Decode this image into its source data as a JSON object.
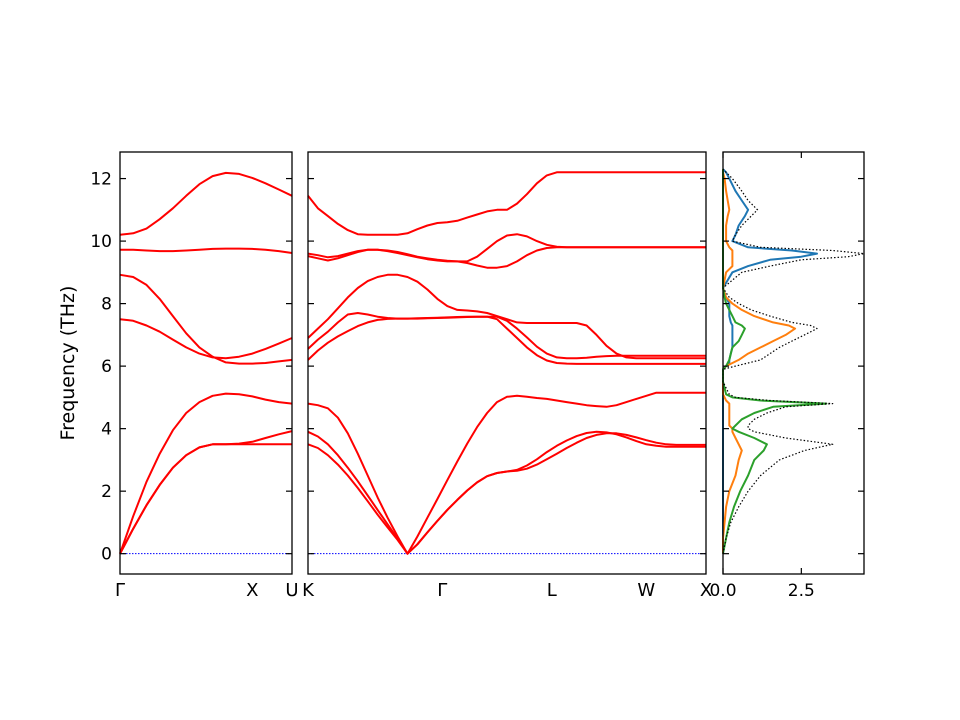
{
  "chart_data": {
    "type": "line",
    "ylabel": "Frequency (THz)",
    "ylim": [
      -0.65,
      12.85
    ],
    "yticks": [
      0,
      2,
      4,
      6,
      8,
      10,
      12
    ],
    "colors": {
      "bands": "#ff0000",
      "zero_line": "#0000ff",
      "dos_total": "#000000",
      "dos_1": "#1f77b4",
      "dos_2": "#ff7f0e",
      "dos_3": "#2ca02c"
    },
    "panels": [
      {
        "name": "band-segment-1",
        "path_labels": [
          "Γ",
          "X",
          "U"
        ],
        "x": [
          0,
          0.5,
          1,
          1.5,
          2,
          2.5,
          3,
          3.5,
          4,
          4.5,
          5,
          5.5,
          6,
          6.5
        ],
        "xlim": [
          0,
          6.5
        ],
        "label_positions": [
          0,
          5,
          6.5
        ],
        "series": [
          {
            "values": [
              0,
              0.8,
              1.55,
              2.2,
              2.75,
              3.15,
              3.4,
              3.5,
              3.5,
              3.5,
              3.5,
              3.5,
              3.5,
              3.5
            ]
          },
          {
            "values": [
              0,
              0.8,
              1.55,
              2.2,
              2.75,
              3.15,
              3.4,
              3.5,
              3.5,
              3.52,
              3.58,
              3.7,
              3.82,
              3.92
            ]
          },
          {
            "values": [
              0,
              1.2,
              2.3,
              3.2,
              3.95,
              4.5,
              4.85,
              5.05,
              5.12,
              5.1,
              5.03,
              4.93,
              4.85,
              4.8
            ]
          },
          {
            "values": [
              7.5,
              7.45,
              7.3,
              7.1,
              6.85,
              6.6,
              6.4,
              6.28,
              6.25,
              6.3,
              6.4,
              6.55,
              6.72,
              6.9
            ]
          },
          {
            "values": [
              8.92,
              8.85,
              8.6,
              8.15,
              7.6,
              7.05,
              6.6,
              6.3,
              6.12,
              6.08,
              6.08,
              6.1,
              6.15,
              6.2
            ]
          },
          {
            "values": [
              9.72,
              9.72,
              9.7,
              9.68,
              9.68,
              9.7,
              9.72,
              9.75,
              9.76,
              9.76,
              9.75,
              9.72,
              9.68,
              9.62
            ]
          },
          {
            "values": [
              10.2,
              10.25,
              10.4,
              10.7,
              11.05,
              11.45,
              11.82,
              12.08,
              12.18,
              12.15,
              12.02,
              11.85,
              11.65,
              11.45
            ]
          }
        ]
      },
      {
        "name": "band-segment-2",
        "path_labels": [
          "K",
          "Γ",
          "L",
          "W",
          "X"
        ],
        "x": [
          0,
          1,
          2,
          3,
          4,
          5,
          6,
          7,
          8,
          9,
          10,
          11,
          12,
          13,
          14,
          15,
          16,
          17,
          18,
          19,
          20,
          21,
          22,
          23,
          24,
          25,
          26,
          27,
          28,
          29,
          30,
          31,
          32,
          33,
          34,
          35,
          36,
          37,
          38,
          39,
          40
        ],
        "xlim": [
          0,
          40
        ],
        "label_positions": [
          0,
          13.5,
          24.5,
          34,
          40
        ],
        "series": [
          {
            "values": [
              3.5,
              3.38,
              3.15,
              2.85,
              2.5,
              2.1,
              1.68,
              1.25,
              0.84,
              0.44,
              0.0,
              0.3,
              0.68,
              1.05,
              1.4,
              1.72,
              2.02,
              2.28,
              2.48,
              2.58,
              2.63,
              2.65,
              2.72,
              2.85,
              3.02,
              3.2,
              3.38,
              3.55,
              3.7,
              3.8,
              3.85,
              3.85,
              3.8,
              3.72,
              3.63,
              3.55,
              3.5,
              3.48,
              3.48,
              3.48,
              3.48
            ]
          },
          {
            "values": [
              3.9,
              3.75,
              3.5,
              3.15,
              2.75,
              2.32,
              1.86,
              1.4,
              0.94,
              0.48,
              0.0,
              0.3,
              0.68,
              1.05,
              1.4,
              1.72,
              2.02,
              2.28,
              2.48,
              2.58,
              2.63,
              2.68,
              2.82,
              3.02,
              3.25,
              3.45,
              3.62,
              3.76,
              3.86,
              3.9,
              3.88,
              3.82,
              3.72,
              3.6,
              3.5,
              3.45,
              3.42,
              3.42,
              3.42,
              3.42,
              3.42
            ]
          },
          {
            "values": [
              4.8,
              4.75,
              4.65,
              4.35,
              3.85,
              3.2,
              2.5,
              1.8,
              1.15,
              0.55,
              0.0,
              0.55,
              1.15,
              1.75,
              2.35,
              2.95,
              3.52,
              4.05,
              4.5,
              4.85,
              5.02,
              5.05,
              5.02,
              4.98,
              4.95,
              4.9,
              4.85,
              4.8,
              4.75,
              4.72,
              4.7,
              4.75,
              4.85,
              4.95,
              5.05,
              5.15,
              5.15,
              5.15,
              5.15,
              5.15,
              5.15
            ]
          },
          {
            "values": [
              6.2,
              6.5,
              6.75,
              6.95,
              7.12,
              7.28,
              7.4,
              7.48,
              7.51,
              7.52,
              7.52,
              7.53,
              7.54,
              7.55,
              7.56,
              7.57,
              7.58,
              7.58,
              7.58,
              7.5,
              7.2,
              6.9,
              6.6,
              6.35,
              6.18,
              6.1,
              6.08,
              6.07,
              6.07,
              6.07,
              6.07,
              6.07,
              6.07,
              6.07,
              6.07,
              6.07,
              6.07,
              6.07,
              6.07,
              6.07,
              6.07
            ]
          },
          {
            "values": [
              6.55,
              6.85,
              7.1,
              7.4,
              7.65,
              7.7,
              7.65,
              7.58,
              7.54,
              7.52,
              7.52,
              7.52,
              7.53,
              7.54,
              7.55,
              7.56,
              7.57,
              7.58,
              7.58,
              7.58,
              7.45,
              7.2,
              6.92,
              6.62,
              6.4,
              6.28,
              6.25,
              6.25,
              6.27,
              6.3,
              6.32,
              6.33,
              6.33,
              6.33,
              6.33,
              6.33,
              6.33,
              6.33,
              6.33,
              6.33,
              6.33
            ]
          },
          {
            "values": [
              6.9,
              7.2,
              7.5,
              7.85,
              8.2,
              8.5,
              8.72,
              8.85,
              8.92,
              8.92,
              8.85,
              8.7,
              8.45,
              8.15,
              7.92,
              7.8,
              7.78,
              7.75,
              7.7,
              7.6,
              7.5,
              7.4,
              7.38,
              7.38,
              7.38,
              7.38,
              7.38,
              7.38,
              7.3,
              7.0,
              6.65,
              6.4,
              6.28,
              6.25,
              6.25,
              6.25,
              6.25,
              6.25,
              6.25,
              6.25,
              6.25
            ]
          },
          {
            "values": [
              9.52,
              9.45,
              9.38,
              9.45,
              9.55,
              9.65,
              9.72,
              9.72,
              9.68,
              9.62,
              9.55,
              9.48,
              9.42,
              9.38,
              9.35,
              9.35,
              9.35,
              9.5,
              9.75,
              10.0,
              10.18,
              10.22,
              10.15,
              10.0,
              9.88,
              9.82,
              9.8,
              9.8,
              9.8,
              9.8,
              9.8,
              9.8,
              9.8,
              9.8,
              9.8,
              9.8,
              9.8,
              9.8,
              9.8,
              9.8,
              9.8
            ]
          },
          {
            "values": [
              9.6,
              9.55,
              9.48,
              9.52,
              9.6,
              9.68,
              9.72,
              9.72,
              9.7,
              9.65,
              9.58,
              9.5,
              9.45,
              9.4,
              9.37,
              9.35,
              9.3,
              9.22,
              9.15,
              9.15,
              9.2,
              9.35,
              9.55,
              9.7,
              9.78,
              9.8,
              9.8,
              9.8,
              9.8,
              9.8,
              9.8,
              9.8,
              9.8,
              9.8,
              9.8,
              9.8,
              9.8,
              9.8,
              9.8,
              9.8,
              9.8
            ]
          },
          {
            "values": [
              11.45,
              11.05,
              10.8,
              10.55,
              10.35,
              10.22,
              10.2,
              10.2,
              10.2,
              10.2,
              10.25,
              10.38,
              10.5,
              10.58,
              10.6,
              10.65,
              10.75,
              10.85,
              10.95,
              11.0,
              11.0,
              11.2,
              11.5,
              11.85,
              12.1,
              12.2,
              12.2,
              12.2,
              12.2,
              12.2,
              12.2,
              12.2,
              12.2,
              12.2,
              12.2,
              12.2,
              12.2,
              12.2,
              12.2,
              12.2,
              12.2
            ]
          }
        ]
      }
    ],
    "dos": {
      "xlim": [
        0,
        4.5
      ],
      "xticks": [
        "0.0",
        "2.5"
      ],
      "xtick_values": [
        0.0,
        2.5
      ],
      "freq": [
        0.0,
        0.5,
        1.0,
        1.5,
        2.0,
        2.5,
        3.0,
        3.3,
        3.5,
        3.7,
        3.9,
        4.0,
        4.1,
        4.3,
        4.5,
        4.7,
        4.8,
        4.9,
        5.0,
        5.1,
        5.5,
        5.9,
        6.0,
        6.1,
        6.2,
        6.4,
        6.6,
        6.8,
        7.0,
        7.2,
        7.3,
        7.4,
        7.6,
        7.8,
        8.0,
        8.2,
        8.5,
        9.0,
        9.2,
        9.4,
        9.5,
        9.6,
        9.7,
        9.8,
        10.0,
        10.2,
        10.5,
        10.8,
        11.0,
        11.3,
        11.6,
        12.0,
        12.2,
        12.3
      ],
      "series": [
        {
          "values": [
            0.0,
            0.1,
            0.25,
            0.5,
            0.8,
            1.2,
            1.8,
            2.6,
            3.5,
            2.0,
            1.0,
            0.8,
            0.8,
            1.0,
            1.4,
            2.0,
            3.5,
            1.5,
            0.4,
            0.2,
            0.0,
            0.0,
            0.4,
            0.8,
            1.2,
            1.5,
            1.8,
            2.2,
            2.6,
            3.0,
            2.8,
            2.2,
            1.5,
            0.9,
            0.5,
            0.2,
            0.0,
            0.6,
            1.5,
            2.5,
            4.0,
            4.5,
            3.5,
            1.2,
            0.3,
            0.4,
            0.6,
            0.9,
            1.1,
            0.8,
            0.6,
            0.3,
            0.1,
            0.0
          ]
        },
        {
          "values": [
            0.0,
            0.0,
            0.0,
            0.0,
            0.0,
            0.0,
            0.0,
            0.0,
            0.0,
            0.0,
            0.0,
            0.0,
            0.0,
            0.0,
            0.0,
            0.0,
            0.0,
            0.0,
            0.0,
            0.0,
            0.0,
            0.0,
            0.1,
            0.2,
            0.2,
            0.25,
            0.3,
            0.3,
            0.3,
            0.3,
            0.3,
            0.25,
            0.2,
            0.2,
            0.2,
            0.1,
            0.0,
            0.3,
            0.8,
            1.5,
            2.5,
            3.0,
            2.2,
            0.8,
            0.3,
            0.4,
            0.5,
            0.7,
            0.8,
            0.6,
            0.4,
            0.2,
            0.1,
            0.0
          ]
        },
        {
          "values": [
            0.0,
            0.0,
            0.05,
            0.1,
            0.2,
            0.4,
            0.5,
            0.6,
            0.5,
            0.4,
            0.3,
            0.3,
            0.2,
            0.2,
            0.2,
            0.2,
            0.2,
            0.1,
            0.05,
            0.0,
            0.0,
            0.0,
            0.1,
            0.3,
            0.5,
            0.8,
            1.2,
            1.6,
            2.0,
            2.3,
            2.1,
            1.6,
            1.0,
            0.6,
            0.3,
            0.1,
            0.0,
            0.1,
            0.3,
            0.3,
            0.3,
            0.3,
            0.3,
            0.2,
            0.1,
            0.1,
            0.1,
            0.15,
            0.2,
            0.15,
            0.1,
            0.05,
            0.0,
            0.0
          ]
        },
        {
          "values": [
            0.0,
            0.1,
            0.2,
            0.35,
            0.55,
            0.8,
            1.0,
            1.3,
            1.4,
            1.0,
            0.5,
            0.3,
            0.4,
            0.6,
            1.0,
            1.6,
            3.3,
            1.2,
            0.3,
            0.1,
            0.0,
            0.0,
            0.1,
            0.15,
            0.2,
            0.25,
            0.3,
            0.5,
            0.6,
            0.7,
            0.6,
            0.4,
            0.3,
            0.2,
            0.1,
            0.05,
            0.0,
            0.0,
            0.0,
            0.0,
            0.0,
            0.0,
            0.0,
            0.0,
            0.0,
            0.0,
            0.0,
            0.0,
            0.0,
            0.0,
            0.0,
            0.0,
            0.0,
            0.0
          ]
        }
      ]
    }
  }
}
